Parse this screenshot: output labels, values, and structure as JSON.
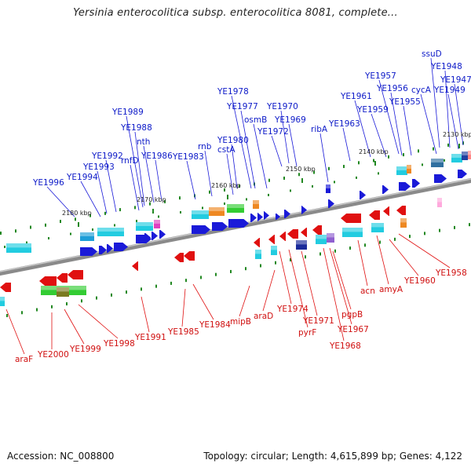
{
  "title": "Yersinia enterocolitica subsp. enterocolitica 8081, complete...",
  "footer": {
    "accession": "Accession: NC_008800",
    "summary": "Topology: circular; Length: 4,615,899 bp; Genes: 4,122"
  },
  "colors": {
    "forward_strand": "#1a1ad8",
    "reverse_strand": "#e01010",
    "backbone": "#8a8a8a",
    "tick": "#228822",
    "cyan_feature": "#22cce0",
    "orange_feature": "#ee8822",
    "green_feature": "#33cc33",
    "magenta_feature": "#e040c0"
  },
  "scale_labels": [
    "2130 kbp",
    "2140 kbp",
    "2150 kbp",
    "2160 kbp",
    "2170 kbp",
    "2180 kbp"
  ],
  "top_genes": [
    "ssuD",
    "YE1948",
    "YE1947",
    "YE1949",
    "cycA",
    "YE1957",
    "YE1956",
    "YE1955",
    "YE1961",
    "YE1959",
    "YE1963",
    "ribA",
    "YE1970",
    "YE1969",
    "YE1972",
    "YE1978",
    "YE1977",
    "osmB",
    "YE1980",
    "cstA",
    "rnb",
    "YE1983",
    "YE1989",
    "YE1988",
    "nth",
    "YE1986",
    "rnfD",
    "YE1992",
    "YE1993",
    "YE1994",
    "YE1996"
  ],
  "bottom_genes": [
    "YE1958",
    "YE1960",
    "amyA",
    "acn",
    "pgpB",
    "YE1967",
    "YE1968",
    "YE1971",
    "pyrF",
    "YE1974",
    "araD",
    "mipB",
    "YE1984",
    "YE1985",
    "YE1991",
    "YE1998",
    "YE1999",
    "YE2000",
    "araF"
  ]
}
